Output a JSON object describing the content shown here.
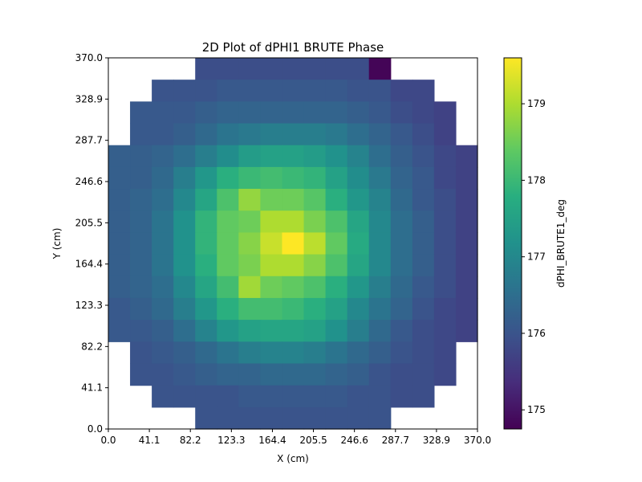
{
  "chart_data": {
    "type": "heatmap",
    "title": "2D Plot of dPHI1 BRUTE Phase",
    "xlabel": "X (cm)",
    "ylabel": "Y (cm)",
    "colorbar_label": "dPHI_BRUTE1_deg",
    "colormap": "viridis",
    "xlim": [
      0,
      370
    ],
    "ylim": [
      0,
      370
    ],
    "x_ticks": [
      "0.0",
      "41.1",
      "82.2",
      "123.3",
      "164.4",
      "205.5",
      "246.6",
      "287.7",
      "328.9",
      "370.0"
    ],
    "y_ticks": [
      "0.0",
      "41.1",
      "82.2",
      "123.3",
      "164.4",
      "205.5",
      "246.6",
      "287.7",
      "328.9",
      "370.0"
    ],
    "color_range": [
      174.75,
      179.6
    ],
    "colorbar_ticks": [
      "175",
      "176",
      "177",
      "178",
      "179"
    ],
    "grid": {
      "cols": 17,
      "rows": 17,
      "cell_size": 21.76,
      "empty_value": null
    },
    "values": [
      [
        null,
        null,
        null,
        null,
        175.9,
        175.9,
        175.9,
        175.9,
        175.9,
        175.9,
        175.9,
        175.9,
        174.8,
        null,
        null,
        null,
        null
      ],
      [
        null,
        null,
        176.0,
        176.0,
        176.0,
        176.1,
        176.1,
        176.1,
        176.1,
        176.1,
        176.1,
        176.0,
        176.0,
        175.8,
        175.8,
        null,
        null
      ],
      [
        null,
        176.1,
        176.1,
        176.1,
        176.2,
        176.3,
        176.3,
        176.3,
        176.3,
        176.3,
        176.3,
        176.2,
        176.1,
        175.9,
        175.8,
        175.7,
        null
      ],
      [
        null,
        176.1,
        176.1,
        176.2,
        176.4,
        176.6,
        176.7,
        176.8,
        176.8,
        176.8,
        176.7,
        176.5,
        176.3,
        176.1,
        175.9,
        175.7,
        null
      ],
      [
        176.2,
        176.2,
        176.3,
        176.5,
        176.8,
        177.1,
        177.4,
        177.5,
        177.5,
        177.4,
        177.2,
        176.9,
        176.5,
        176.2,
        176.0,
        175.8,
        175.7
      ],
      [
        176.2,
        176.2,
        176.4,
        176.8,
        177.3,
        177.8,
        178.0,
        178.1,
        178.0,
        177.9,
        177.5,
        177.1,
        176.7,
        176.3,
        176.1,
        175.8,
        175.7
      ],
      [
        176.2,
        176.3,
        176.5,
        177.0,
        177.6,
        178.2,
        178.8,
        178.5,
        178.5,
        178.3,
        177.8,
        177.3,
        176.9,
        176.4,
        176.1,
        175.9,
        175.7
      ],
      [
        176.2,
        176.3,
        176.6,
        177.2,
        177.9,
        178.4,
        178.5,
        179.0,
        179.0,
        178.6,
        178.2,
        177.6,
        177.0,
        176.5,
        176.2,
        175.9,
        175.7
      ],
      [
        176.2,
        176.3,
        176.6,
        177.2,
        177.9,
        178.4,
        178.7,
        179.2,
        179.6,
        179.1,
        178.4,
        177.7,
        177.0,
        176.5,
        176.2,
        175.9,
        175.7
      ],
      [
        176.2,
        176.3,
        176.6,
        177.2,
        177.8,
        178.4,
        178.6,
        179.0,
        179.0,
        178.7,
        178.2,
        177.6,
        177.0,
        176.5,
        176.2,
        175.9,
        175.7
      ],
      [
        176.2,
        176.3,
        176.5,
        177.0,
        177.6,
        178.1,
        178.9,
        178.5,
        178.4,
        178.2,
        177.8,
        177.3,
        176.8,
        176.4,
        176.1,
        175.9,
        175.7
      ],
      [
        176.1,
        176.2,
        176.4,
        176.8,
        177.3,
        177.8,
        178.1,
        178.1,
        178.0,
        177.8,
        177.5,
        177.0,
        176.6,
        176.3,
        176.0,
        175.8,
        175.7
      ],
      [
        176.1,
        176.1,
        176.2,
        176.5,
        176.9,
        177.3,
        177.5,
        177.6,
        177.6,
        177.5,
        177.2,
        176.8,
        176.4,
        176.1,
        175.9,
        175.8,
        175.7
      ],
      [
        null,
        176.0,
        176.1,
        176.2,
        176.4,
        176.6,
        176.8,
        176.9,
        176.9,
        176.8,
        176.6,
        176.4,
        176.2,
        176.0,
        175.9,
        175.8,
        null
      ],
      [
        null,
        176.0,
        176.0,
        176.1,
        176.2,
        176.3,
        176.3,
        176.4,
        176.4,
        176.4,
        176.3,
        176.2,
        176.0,
        175.9,
        175.9,
        175.8,
        null
      ],
      [
        null,
        null,
        176.0,
        176.0,
        176.0,
        176.0,
        176.1,
        176.1,
        176.1,
        176.1,
        176.1,
        176.0,
        176.0,
        175.9,
        175.9,
        null,
        null
      ],
      [
        null,
        null,
        null,
        null,
        176.0,
        176.0,
        176.0,
        176.0,
        176.0,
        176.0,
        176.0,
        176.0,
        176.0,
        null,
        null,
        null,
        null
      ]
    ]
  }
}
